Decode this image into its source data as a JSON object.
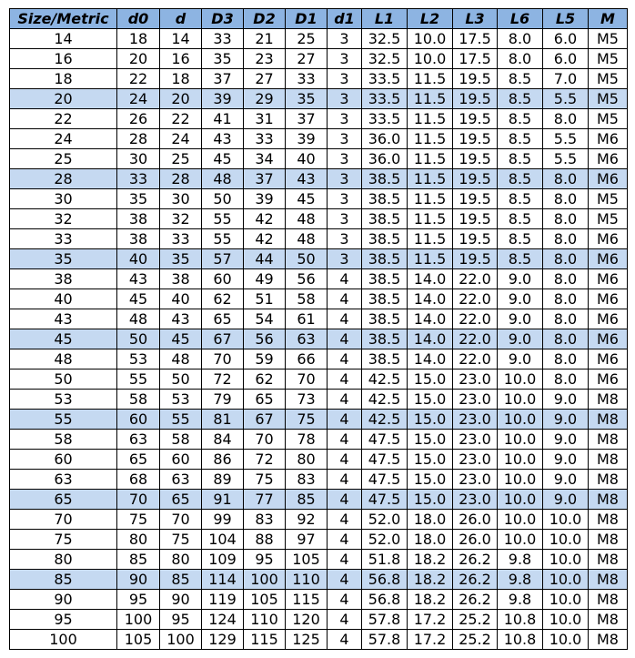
{
  "headers": [
    "Size/Metric",
    "d0",
    "d",
    "D3",
    "D2",
    "D1",
    "d1",
    "L1",
    "L2",
    "L3",
    "L6",
    "L5",
    "M"
  ],
  "header_color": "#8db4e2",
  "highlight_color": "#c5d9f1",
  "highlighted_sizes": [
    "20",
    "28",
    "35",
    "45",
    "55",
    "65",
    "85"
  ],
  "rows": [
    [
      "14",
      "18",
      "14",
      "33",
      "21",
      "25",
      "3",
      "32.5",
      "10.0",
      "17.5",
      "8.0",
      "6.0",
      "M5"
    ],
    [
      "16",
      "20",
      "16",
      "35",
      "23",
      "27",
      "3",
      "32.5",
      "10.0",
      "17.5",
      "8.0",
      "6.0",
      "M5"
    ],
    [
      "18",
      "22",
      "18",
      "37",
      "27",
      "33",
      "3",
      "33.5",
      "11.5",
      "19.5",
      "8.5",
      "7.0",
      "M5"
    ],
    [
      "20",
      "24",
      "20",
      "39",
      "29",
      "35",
      "3",
      "33.5",
      "11.5",
      "19.5",
      "8.5",
      "5.5",
      "M5"
    ],
    [
      "22",
      "26",
      "22",
      "41",
      "31",
      "37",
      "3",
      "33.5",
      "11.5",
      "19.5",
      "8.5",
      "8.0",
      "M5"
    ],
    [
      "24",
      "28",
      "24",
      "43",
      "33",
      "39",
      "3",
      "36.0",
      "11.5",
      "19.5",
      "8.5",
      "5.5",
      "M6"
    ],
    [
      "25",
      "30",
      "25",
      "45",
      "34",
      "40",
      "3",
      "36.0",
      "11.5",
      "19.5",
      "8.5",
      "5.5",
      "M6"
    ],
    [
      "28",
      "33",
      "28",
      "48",
      "37",
      "43",
      "3",
      "38.5",
      "11.5",
      "19.5",
      "8.5",
      "8.0",
      "M6"
    ],
    [
      "30",
      "35",
      "30",
      "50",
      "39",
      "45",
      "3",
      "38.5",
      "11.5",
      "19.5",
      "8.5",
      "8.0",
      "M5"
    ],
    [
      "32",
      "38",
      "32",
      "55",
      "42",
      "48",
      "3",
      "38.5",
      "11.5",
      "19.5",
      "8.5",
      "8.0",
      "M5"
    ],
    [
      "33",
      "38",
      "33",
      "55",
      "42",
      "48",
      "3",
      "38.5",
      "11.5",
      "19.5",
      "8.5",
      "8.0",
      "M6"
    ],
    [
      "35",
      "40",
      "35",
      "57",
      "44",
      "50",
      "3",
      "38.5",
      "11.5",
      "19.5",
      "8.5",
      "8.0",
      "M6"
    ],
    [
      "38",
      "43",
      "38",
      "60",
      "49",
      "56",
      "4",
      "38.5",
      "14.0",
      "22.0",
      "9.0",
      "8.0",
      "M6"
    ],
    [
      "40",
      "45",
      "40",
      "62",
      "51",
      "58",
      "4",
      "38.5",
      "14.0",
      "22.0",
      "9.0",
      "8.0",
      "M6"
    ],
    [
      "43",
      "48",
      "43",
      "65",
      "54",
      "61",
      "4",
      "38.5",
      "14.0",
      "22.0",
      "9.0",
      "8.0",
      "M6"
    ],
    [
      "45",
      "50",
      "45",
      "67",
      "56",
      "63",
      "4",
      "38.5",
      "14.0",
      "22.0",
      "9.0",
      "8.0",
      "M6"
    ],
    [
      "48",
      "53",
      "48",
      "70",
      "59",
      "66",
      "4",
      "38.5",
      "14.0",
      "22.0",
      "9.0",
      "8.0",
      "M6"
    ],
    [
      "50",
      "55",
      "50",
      "72",
      "62",
      "70",
      "4",
      "42.5",
      "15.0",
      "23.0",
      "10.0",
      "8.0",
      "M6"
    ],
    [
      "53",
      "58",
      "53",
      "79",
      "65",
      "73",
      "4",
      "42.5",
      "15.0",
      "23.0",
      "10.0",
      "9.0",
      "M8"
    ],
    [
      "55",
      "60",
      "55",
      "81",
      "67",
      "75",
      "4",
      "42.5",
      "15.0",
      "23.0",
      "10.0",
      "9.0",
      "M8"
    ],
    [
      "58",
      "63",
      "58",
      "84",
      "70",
      "78",
      "4",
      "47.5",
      "15.0",
      "23.0",
      "10.0",
      "9.0",
      "M8"
    ],
    [
      "60",
      "65",
      "60",
      "86",
      "72",
      "80",
      "4",
      "47.5",
      "15.0",
      "23.0",
      "10.0",
      "9.0",
      "M8"
    ],
    [
      "63",
      "68",
      "63",
      "89",
      "75",
      "83",
      "4",
      "47.5",
      "15.0",
      "23.0",
      "10.0",
      "9.0",
      "M8"
    ],
    [
      "65",
      "70",
      "65",
      "91",
      "77",
      "85",
      "4",
      "47.5",
      "15.0",
      "23.0",
      "10.0",
      "9.0",
      "M8"
    ],
    [
      "70",
      "75",
      "70",
      "99",
      "83",
      "92",
      "4",
      "52.0",
      "18.0",
      "26.0",
      "10.0",
      "10.0",
      "M8"
    ],
    [
      "75",
      "80",
      "75",
      "104",
      "88",
      "97",
      "4",
      "52.0",
      "18.0",
      "26.0",
      "10.0",
      "10.0",
      "M8"
    ],
    [
      "80",
      "85",
      "80",
      "109",
      "95",
      "105",
      "4",
      "51.8",
      "18.2",
      "26.2",
      "9.8",
      "10.0",
      "M8"
    ],
    [
      "85",
      "90",
      "85",
      "114",
      "100",
      "110",
      "4",
      "56.8",
      "18.2",
      "26.2",
      "9.8",
      "10.0",
      "M8"
    ],
    [
      "90",
      "95",
      "90",
      "119",
      "105",
      "115",
      "4",
      "56.8",
      "18.2",
      "26.2",
      "9.8",
      "10.0",
      "M8"
    ],
    [
      "95",
      "100",
      "95",
      "124",
      "110",
      "120",
      "4",
      "57.8",
      "17.2",
      "25.2",
      "10.8",
      "10.0",
      "M8"
    ],
    [
      "100",
      "105",
      "100",
      "129",
      "115",
      "125",
      "4",
      "57.8",
      "17.2",
      "25.2",
      "10.8",
      "10.0",
      "M8"
    ]
  ]
}
